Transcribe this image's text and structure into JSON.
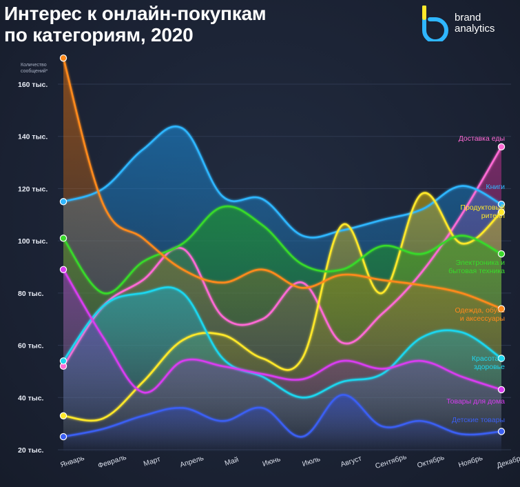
{
  "title_line1": "Интерес к онлайн-покупкам",
  "title_line2": "по категориям, 2020",
  "logo": {
    "line1": "brand",
    "line2": "analytics"
  },
  "chart_data": {
    "type": "line",
    "title": "Интерес к онлайн-покупкам по категориям, 2020",
    "ylabel": "Количество сообщений*",
    "xlabel": "",
    "ylim": [
      20000,
      170000
    ],
    "grid": "horizontal",
    "yticks": [
      {
        "value": 20000,
        "label": "20 тыс."
      },
      {
        "value": 40000,
        "label": "40 тыс."
      },
      {
        "value": 60000,
        "label": "60 тыс."
      },
      {
        "value": 80000,
        "label": "80 тыс."
      },
      {
        "value": 100000,
        "label": "100 тыс."
      },
      {
        "value": 120000,
        "label": "120 тыс."
      },
      {
        "value": 140000,
        "label": "140 тыс."
      },
      {
        "value": 160000,
        "label": "160 тыс."
      }
    ],
    "categories": [
      "Январь",
      "Февраль",
      "Март",
      "Апрель",
      "Май",
      "Июнь",
      "Июль",
      "Август",
      "Сентябрь",
      "Октябрь",
      "Ноябрь",
      "Декабрь"
    ],
    "series": [
      {
        "name": "Доставка еды",
        "color": "#ff6ad5",
        "fill": "#c0338f",
        "values": [
          52000,
          75000,
          85000,
          97000,
          71000,
          70000,
          84000,
          61000,
          72000,
          88000,
          110000,
          136000
        ]
      },
      {
        "name": "Книги",
        "color": "#2fb6ff",
        "fill": "#1a8fe0",
        "values": [
          115000,
          120000,
          135000,
          143000,
          117000,
          116000,
          102000,
          104000,
          108000,
          112000,
          121000,
          114000
        ]
      },
      {
        "name": "Продуктовый ритейл",
        "color": "#ffe82a",
        "fill": "#d8b810",
        "values": [
          33000,
          32000,
          46000,
          62000,
          64000,
          55000,
          55000,
          106000,
          80000,
          118000,
          99000,
          111000
        ]
      },
      {
        "name": "Электроника и бытовая техника",
        "color": "#39d92b",
        "fill": "#1fa316",
        "values": [
          101000,
          80000,
          92000,
          99000,
          113000,
          106000,
          91000,
          89000,
          98000,
          95000,
          102000,
          95000
        ]
      },
      {
        "name": "Одежда, обувь и аксессуары",
        "color": "#ff8a1c",
        "fill": "#d46b10",
        "values": [
          170000,
          114000,
          101000,
          89000,
          84000,
          89000,
          82000,
          87000,
          85000,
          83000,
          80000,
          74000
        ]
      },
      {
        "name": "Красота и здоровье",
        "color": "#1fd6ee",
        "fill": "#17aac4",
        "values": [
          54000,
          75000,
          80000,
          80000,
          55000,
          48000,
          40000,
          46000,
          49000,
          63000,
          65000,
          55000
        ]
      },
      {
        "name": "Товары для дома",
        "color": "#d83cf0",
        "fill": "#8c1fc4",
        "values": [
          89000,
          63000,
          42000,
          54000,
          52000,
          49000,
          47000,
          54000,
          51000,
          54000,
          48000,
          43000
        ]
      },
      {
        "name": "Детские товары",
        "color": "#3b5ff2",
        "fill": "#2a45c8",
        "values": [
          25000,
          28000,
          33000,
          36000,
          31000,
          36000,
          25000,
          41000,
          29000,
          31000,
          26000,
          27000
        ]
      }
    ],
    "legend": "right, at line ends"
  }
}
